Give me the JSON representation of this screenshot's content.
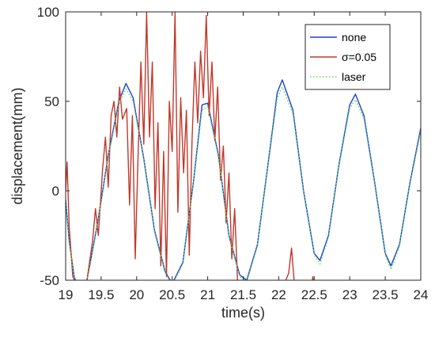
{
  "chart_data": {
    "type": "line",
    "title": "",
    "xlabel": "time(s)",
    "ylabel": "displacement(mm)",
    "xlim": [
      19,
      24
    ],
    "ylim": [
      -50,
      100
    ],
    "xticks": [
      19,
      19.5,
      20,
      20.5,
      21,
      21.5,
      22,
      22.5,
      23,
      23.5,
      24
    ],
    "xtick_labels": [
      "19",
      "19.5",
      "20",
      "20.5",
      "21",
      "21.5",
      "22",
      "22.5",
      "23",
      "23.5",
      "24"
    ],
    "yticks": [
      -50,
      0,
      50,
      100
    ],
    "ytick_labels": [
      "-50",
      "0",
      "50",
      "100"
    ],
    "grid": false,
    "legend_position": "top-right",
    "series": [
      {
        "name": "none",
        "color": "#1f3fd0",
        "style": "solid",
        "points": [
          [
            19.0,
            -5
          ],
          [
            19.05,
            -28
          ],
          [
            19.12,
            -48
          ],
          [
            19.17,
            -54
          ],
          [
            19.3,
            -50
          ],
          [
            19.45,
            -18
          ],
          [
            19.6,
            20
          ],
          [
            19.75,
            50
          ],
          [
            19.85,
            60
          ],
          [
            19.95,
            52
          ],
          [
            20.1,
            18
          ],
          [
            20.25,
            -22
          ],
          [
            20.4,
            -45
          ],
          [
            20.5,
            -52
          ],
          [
            20.65,
            -40
          ],
          [
            20.8,
            5
          ],
          [
            20.92,
            48
          ],
          [
            21.0,
            49
          ],
          [
            21.15,
            20
          ],
          [
            21.3,
            -25
          ],
          [
            21.45,
            -47
          ],
          [
            21.55,
            -50
          ],
          [
            21.7,
            -30
          ],
          [
            21.85,
            15
          ],
          [
            21.98,
            55
          ],
          [
            22.05,
            62
          ],
          [
            22.2,
            45
          ],
          [
            22.35,
            0
          ],
          [
            22.5,
            -35
          ],
          [
            22.58,
            -39
          ],
          [
            22.7,
            -25
          ],
          [
            22.85,
            15
          ],
          [
            23.0,
            48
          ],
          [
            23.08,
            54
          ],
          [
            23.2,
            42
          ],
          [
            23.35,
            5
          ],
          [
            23.5,
            -35
          ],
          [
            23.58,
            -42
          ],
          [
            23.7,
            -30
          ],
          [
            23.85,
            5
          ],
          [
            24.0,
            35
          ]
        ]
      },
      {
        "name": "σ=0.05",
        "color": "#c0392b",
        "style": "solid",
        "points": [
          [
            19.0,
            0
          ],
          [
            19.02,
            16
          ],
          [
            19.05,
            -20
          ],
          [
            19.1,
            -48
          ],
          [
            19.18,
            -55
          ],
          [
            19.3,
            -50
          ],
          [
            19.38,
            -28
          ],
          [
            19.42,
            -10
          ],
          [
            19.46,
            -25
          ],
          [
            19.52,
            12
          ],
          [
            19.56,
            30
          ],
          [
            19.6,
            2
          ],
          [
            19.64,
            42
          ],
          [
            19.68,
            50
          ],
          [
            19.72,
            30
          ],
          [
            19.76,
            58
          ],
          [
            19.8,
            40
          ],
          [
            19.86,
            46
          ],
          [
            19.9,
            -8
          ],
          [
            19.94,
            42
          ],
          [
            19.98,
            -38
          ],
          [
            20.02,
            20
          ],
          [
            20.06,
            72
          ],
          [
            20.1,
            26
          ],
          [
            20.14,
            100
          ],
          [
            20.18,
            30
          ],
          [
            20.22,
            72
          ],
          [
            20.26,
            -10
          ],
          [
            20.3,
            38
          ],
          [
            20.34,
            -42
          ],
          [
            20.38,
            22
          ],
          [
            20.42,
            -48
          ],
          [
            20.46,
            50
          ],
          [
            20.5,
            22
          ],
          [
            20.54,
            100
          ],
          [
            20.58,
            -12
          ],
          [
            20.62,
            52
          ],
          [
            20.66,
            10
          ],
          [
            20.7,
            45
          ],
          [
            20.74,
            -36
          ],
          [
            20.78,
            28
          ],
          [
            20.82,
            72
          ],
          [
            20.86,
            38
          ],
          [
            20.9,
            78
          ],
          [
            20.94,
            52
          ],
          [
            20.98,
            98
          ],
          [
            21.02,
            42
          ],
          [
            21.06,
            72
          ],
          [
            21.1,
            28
          ],
          [
            21.14,
            58
          ],
          [
            21.18,
            6
          ],
          [
            21.22,
            25
          ],
          [
            21.26,
            -18
          ],
          [
            21.3,
            10
          ],
          [
            21.34,
            -38
          ],
          [
            21.38,
            -10
          ],
          [
            21.42,
            -50
          ],
          [
            21.46,
            -55
          ],
          [
            21.5,
            -54
          ],
          [
            22.02,
            -54
          ],
          [
            22.08,
            -52
          ],
          [
            22.14,
            -46
          ],
          [
            22.18,
            -32
          ],
          [
            22.22,
            -52
          ],
          [
            22.26,
            -55
          ],
          [
            22.46,
            -55
          ],
          [
            22.48,
            -48
          ],
          [
            22.5,
            -55
          ]
        ]
      },
      {
        "name": "laser",
        "color": "#66dd66",
        "style": "dotted",
        "points": [
          [
            19.0,
            -6
          ],
          [
            19.05,
            -29
          ],
          [
            19.12,
            -49
          ],
          [
            19.17,
            -55
          ],
          [
            19.3,
            -51
          ],
          [
            19.45,
            -19
          ],
          [
            19.6,
            19
          ],
          [
            19.75,
            48
          ],
          [
            19.85,
            57
          ],
          [
            19.95,
            50
          ],
          [
            20.1,
            17
          ],
          [
            20.25,
            -23
          ],
          [
            20.4,
            -46
          ],
          [
            20.5,
            -53
          ],
          [
            20.65,
            -41
          ],
          [
            20.8,
            4
          ],
          [
            20.92,
            45
          ],
          [
            21.0,
            47
          ],
          [
            21.15,
            19
          ],
          [
            21.3,
            -26
          ],
          [
            21.45,
            -48
          ],
          [
            21.55,
            -51
          ],
          [
            21.7,
            -31
          ],
          [
            21.85,
            14
          ],
          [
            21.98,
            52
          ],
          [
            22.05,
            58
          ],
          [
            22.2,
            43
          ],
          [
            22.35,
            -1
          ],
          [
            22.5,
            -36
          ],
          [
            22.58,
            -41
          ],
          [
            22.7,
            -26
          ],
          [
            22.85,
            14
          ],
          [
            23.0,
            46
          ],
          [
            23.08,
            51
          ],
          [
            23.2,
            40
          ],
          [
            23.35,
            4
          ],
          [
            23.5,
            -36
          ],
          [
            23.58,
            -44
          ],
          [
            23.7,
            -31
          ],
          [
            23.85,
            4
          ],
          [
            24.0,
            33
          ]
        ]
      }
    ]
  }
}
